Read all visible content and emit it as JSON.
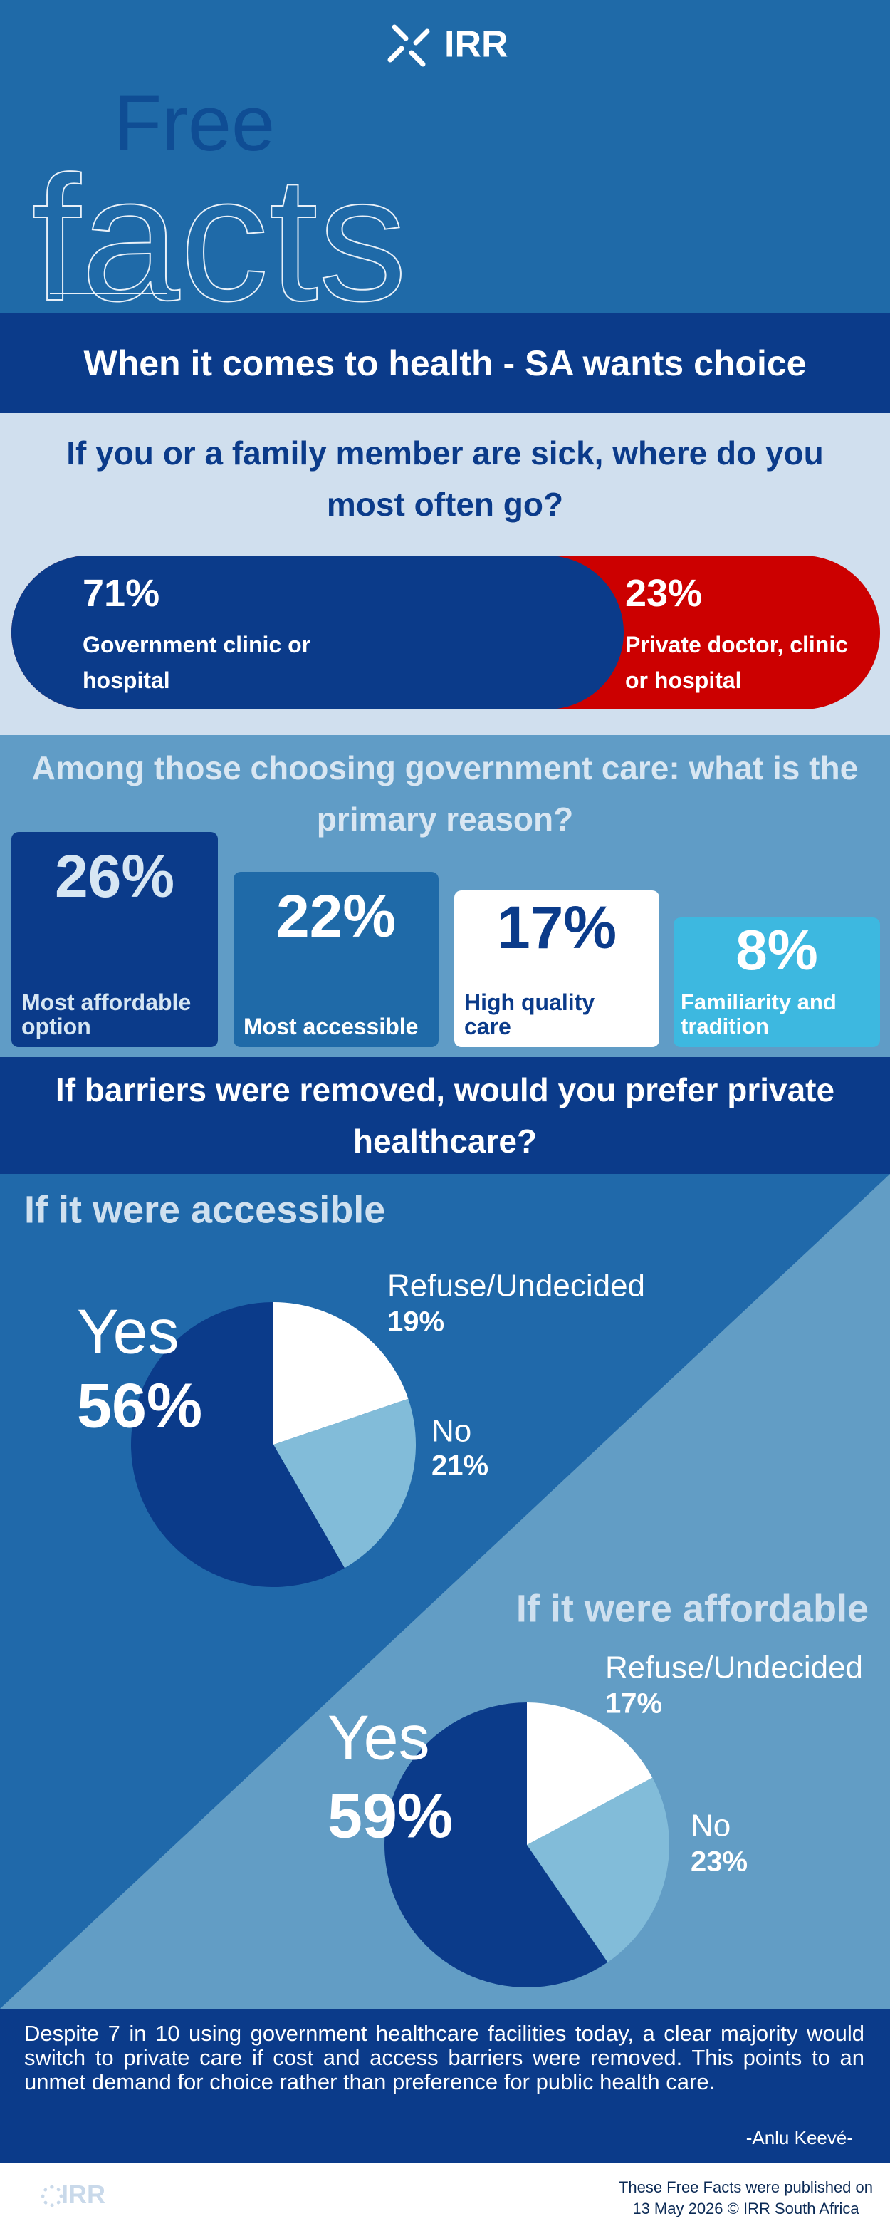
{
  "header": {
    "logo": "IRR",
    "title_small": "Free",
    "title_large": "facts"
  },
  "banner": "When it comes to health - SA wants choice",
  "question1": {
    "title": "If you or a family member are sick, where do you most often go?",
    "options": [
      {
        "value": "71%",
        "label": "Government clinic or hospital"
      },
      {
        "value": "23%",
        "label": "Private doctor, clinic or hospital"
      }
    ]
  },
  "question2": {
    "title": "Among those choosing government care: what is the primary reason?",
    "options": [
      {
        "value": "26%",
        "label": "Most affordable option"
      },
      {
        "value": "22%",
        "label": "Most accessible"
      },
      {
        "value": "17%",
        "label": "High quality care"
      },
      {
        "value": "8%",
        "label": "Familiarity and tradition"
      }
    ]
  },
  "question3": {
    "title": "If barriers were removed, would you prefer private healthcare?",
    "charts": [
      {
        "type": "pie",
        "title": "If it were accessible",
        "categories": [
          "Refuse/Undecided",
          "No",
          "Yes"
        ],
        "values": [
          19,
          21,
          56
        ],
        "value_labels": [
          "19%",
          "21%",
          "56%"
        ],
        "colors": [
          "#ffffff",
          "#82bcd9",
          "#0b3b8a"
        ]
      },
      {
        "type": "pie",
        "title": "If it were affordable",
        "categories": [
          "Refuse/Undecided",
          "No",
          "Yes"
        ],
        "values": [
          17,
          23,
          59
        ],
        "value_labels": [
          "17%",
          "23%",
          "59%"
        ],
        "colors": [
          "#ffffff",
          "#82bcd9",
          "#0b3b8a"
        ]
      }
    ]
  },
  "quote": {
    "text": "Despite 7 in 10 using government healthcare facilities today, a clear majority would switch to private care if cost and access barriers were removed. This points to an unmet demand for choice rather than preference for public health care.",
    "author": "-Anlu Keevé-"
  },
  "footer": {
    "logo": "IRR",
    "note_lines": [
      "These Free Facts were published on",
      "13 May 2026 © IRR South Africa"
    ]
  }
}
